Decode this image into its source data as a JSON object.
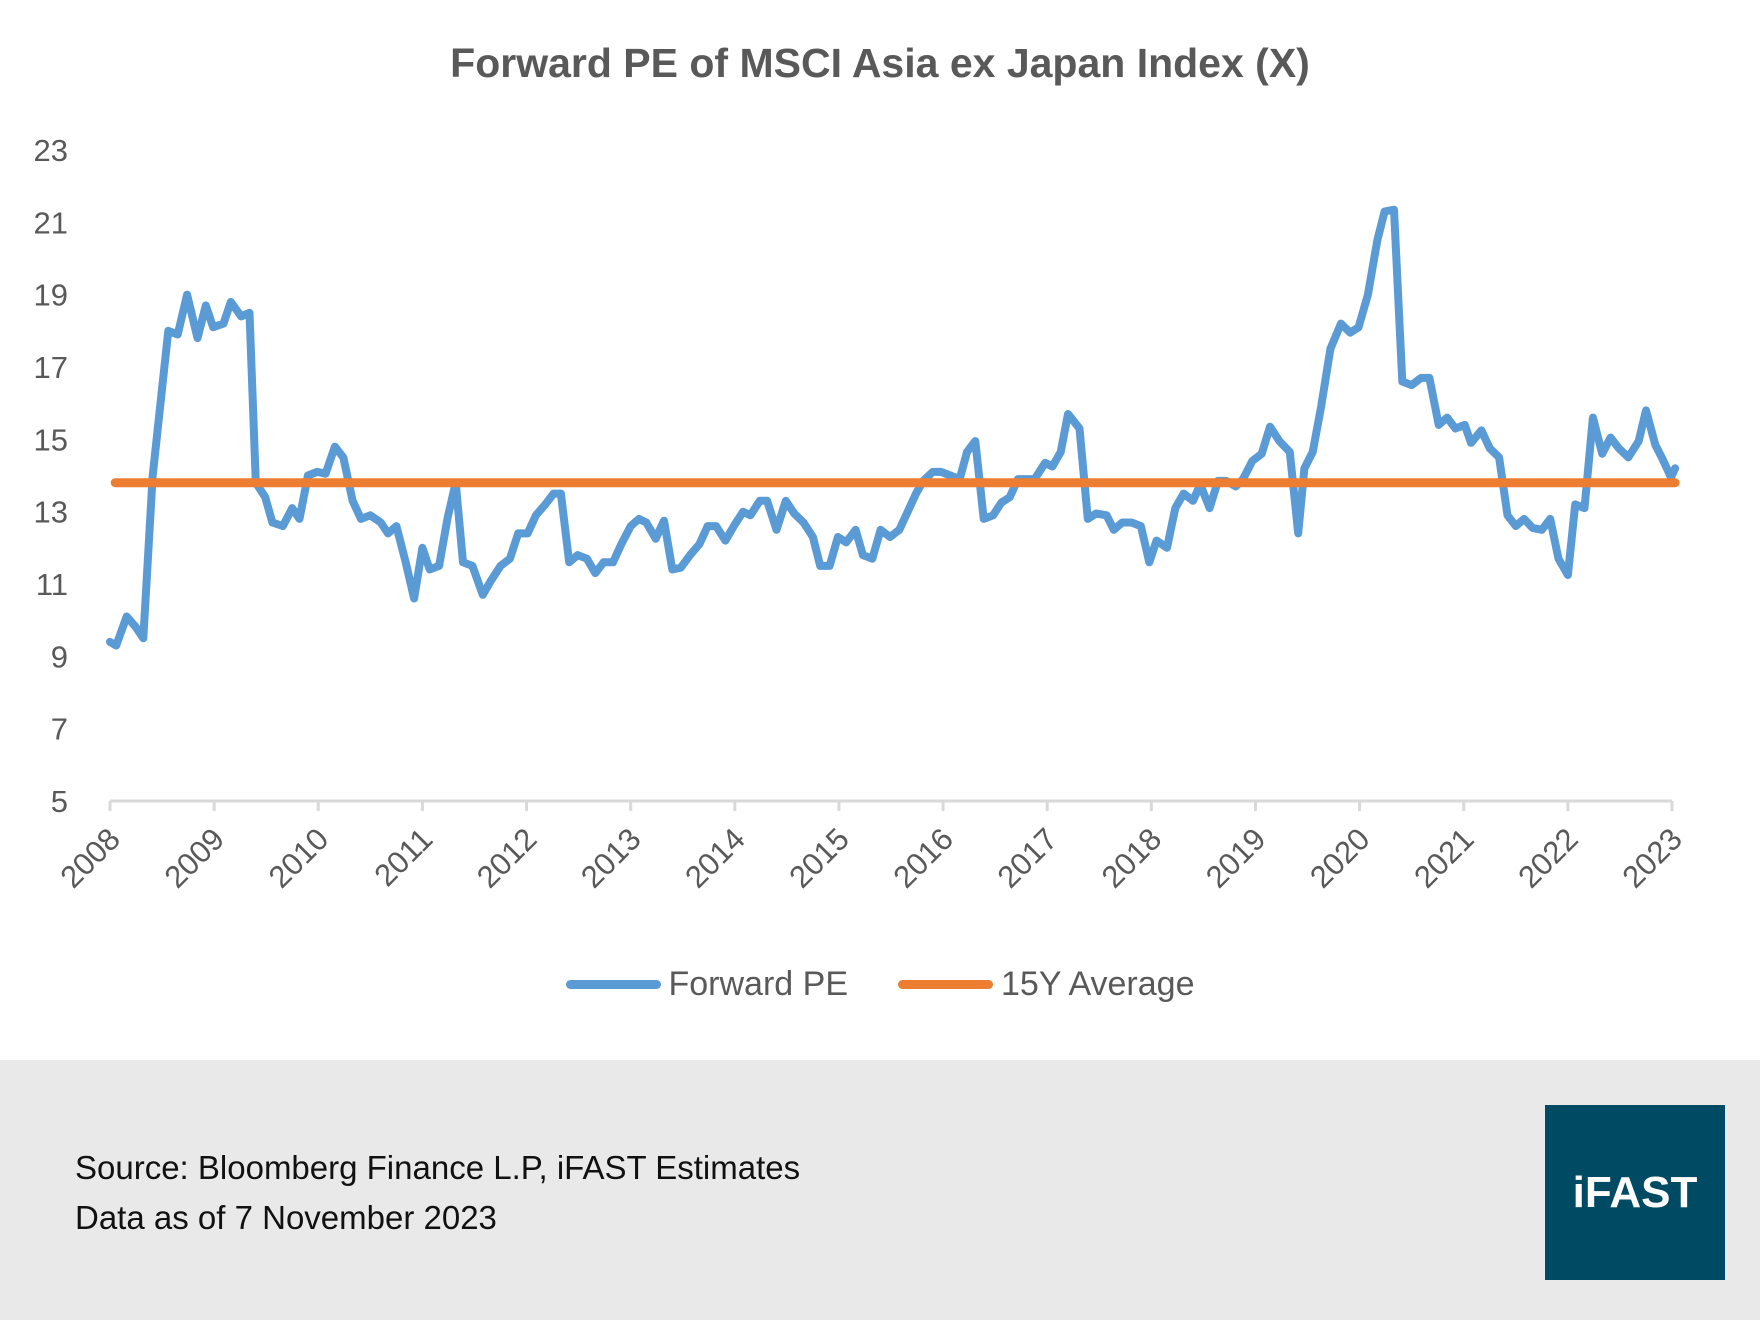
{
  "chart_data": {
    "type": "line",
    "title": "Forward PE of MSCI Asia ex Japan Index (X)",
    "xlabel": "",
    "ylabel": "",
    "xlim": [
      2008,
      2023
    ],
    "ylim": [
      5,
      23
    ],
    "yticks": [
      5,
      7,
      9,
      11,
      13,
      15,
      17,
      19,
      21,
      23
    ],
    "xticks": [
      2008,
      2009,
      2010,
      2011,
      2012,
      2013,
      2014,
      2015,
      2016,
      2017,
      2018,
      2019,
      2020,
      2021,
      2022,
      2023
    ],
    "grid": false,
    "legend_placement": "bottom",
    "series": [
      {
        "name": "Forward PE",
        "color": "#5b9bd5",
        "points": [
          [
            2008.0,
            9.4
          ],
          [
            2008.06,
            9.3
          ],
          [
            2008.16,
            10.1
          ],
          [
            2008.25,
            9.8
          ],
          [
            2008.32,
            9.5
          ],
          [
            2008.41,
            14.0
          ],
          [
            2008.56,
            18.0
          ],
          [
            2008.65,
            17.9
          ],
          [
            2008.74,
            19.0
          ],
          [
            2008.84,
            17.8
          ],
          [
            2008.92,
            18.7
          ],
          [
            2008.99,
            18.1
          ],
          [
            2009.09,
            18.2
          ],
          [
            2009.16,
            18.8
          ],
          [
            2009.26,
            18.4
          ],
          [
            2009.34,
            18.5
          ],
          [
            2009.4,
            13.8
          ],
          [
            2009.49,
            13.4
          ],
          [
            2009.56,
            12.7
          ],
          [
            2009.66,
            12.6
          ],
          [
            2009.75,
            13.1
          ],
          [
            2009.82,
            12.8
          ],
          [
            2009.9,
            14.0
          ],
          [
            2009.99,
            14.1
          ],
          [
            2010.07,
            14.05
          ],
          [
            2010.16,
            14.8
          ],
          [
            2010.24,
            14.5
          ],
          [
            2010.33,
            13.3
          ],
          [
            2010.41,
            12.8
          ],
          [
            2010.5,
            12.9
          ],
          [
            2010.6,
            12.7
          ],
          [
            2010.67,
            12.4
          ],
          [
            2010.75,
            12.6
          ],
          [
            2010.84,
            11.6
          ],
          [
            2010.92,
            10.6
          ],
          [
            2011.0,
            12.0
          ],
          [
            2011.07,
            11.4
          ],
          [
            2011.16,
            11.5
          ],
          [
            2011.24,
            12.8
          ],
          [
            2011.32,
            13.8
          ],
          [
            2011.39,
            11.6
          ],
          [
            2011.48,
            11.5
          ],
          [
            2011.58,
            10.7
          ],
          [
            2011.66,
            11.1
          ],
          [
            2011.75,
            11.5
          ],
          [
            2011.84,
            11.7
          ],
          [
            2011.92,
            12.4
          ],
          [
            2012.01,
            12.4
          ],
          [
            2012.09,
            12.9
          ],
          [
            2012.18,
            13.2
          ],
          [
            2012.26,
            13.5
          ],
          [
            2012.33,
            13.5
          ],
          [
            2012.41,
            11.6
          ],
          [
            2012.49,
            11.8
          ],
          [
            2012.58,
            11.7
          ],
          [
            2012.66,
            11.3
          ],
          [
            2012.74,
            11.6
          ],
          [
            2012.83,
            11.6
          ],
          [
            2012.91,
            12.1
          ],
          [
            2013.0,
            12.6
          ],
          [
            2013.08,
            12.8
          ],
          [
            2013.15,
            12.7
          ],
          [
            2013.24,
            12.25
          ],
          [
            2013.32,
            12.75
          ],
          [
            2013.4,
            11.4
          ],
          [
            2013.48,
            11.45
          ],
          [
            2013.57,
            11.8
          ],
          [
            2013.66,
            12.1
          ],
          [
            2013.74,
            12.6
          ],
          [
            2013.82,
            12.6
          ],
          [
            2013.91,
            12.2
          ],
          [
            2013.99,
            12.6
          ],
          [
            2014.08,
            13.0
          ],
          [
            2014.15,
            12.9
          ],
          [
            2014.24,
            13.3
          ],
          [
            2014.31,
            13.3
          ],
          [
            2014.4,
            12.5
          ],
          [
            2014.49,
            13.3
          ],
          [
            2014.57,
            12.95
          ],
          [
            2014.66,
            12.7
          ],
          [
            2014.75,
            12.3
          ],
          [
            2014.82,
            11.5
          ],
          [
            2014.91,
            11.5
          ],
          [
            2014.99,
            12.3
          ],
          [
            2015.07,
            12.15
          ],
          [
            2015.16,
            12.5
          ],
          [
            2015.23,
            11.8
          ],
          [
            2015.32,
            11.7
          ],
          [
            2015.4,
            12.5
          ],
          [
            2015.49,
            12.3
          ],
          [
            2015.58,
            12.5
          ],
          [
            2015.66,
            13.0
          ],
          [
            2015.74,
            13.5
          ],
          [
            2015.81,
            13.85
          ],
          [
            2015.9,
            14.1
          ],
          [
            2015.98,
            14.1
          ],
          [
            2016.07,
            14.0
          ],
          [
            2016.16,
            13.9
          ],
          [
            2016.23,
            14.65
          ],
          [
            2016.31,
            14.95
          ],
          [
            2016.39,
            12.8
          ],
          [
            2016.48,
            12.9
          ],
          [
            2016.56,
            13.25
          ],
          [
            2016.64,
            13.4
          ],
          [
            2016.72,
            13.9
          ],
          [
            2016.8,
            13.9
          ],
          [
            2016.88,
            13.9
          ],
          [
            2016.98,
            14.35
          ],
          [
            2017.05,
            14.25
          ],
          [
            2017.13,
            14.65
          ],
          [
            2017.2,
            15.7
          ],
          [
            2017.31,
            15.3
          ],
          [
            2017.39,
            12.8
          ],
          [
            2017.47,
            12.95
          ],
          [
            2017.57,
            12.9
          ],
          [
            2017.64,
            12.5
          ],
          [
            2017.72,
            12.7
          ],
          [
            2017.81,
            12.7
          ],
          [
            2017.9,
            12.6
          ],
          [
            2017.98,
            11.6
          ],
          [
            2018.05,
            12.2
          ],
          [
            2018.15,
            12.0
          ],
          [
            2018.23,
            13.1
          ],
          [
            2018.31,
            13.5
          ],
          [
            2018.4,
            13.3
          ],
          [
            2018.47,
            13.75
          ],
          [
            2018.56,
            13.1
          ],
          [
            2018.64,
            13.85
          ],
          [
            2018.72,
            13.85
          ],
          [
            2018.81,
            13.7
          ],
          [
            2018.88,
            13.9
          ],
          [
            2018.97,
            14.4
          ],
          [
            2019.06,
            14.6
          ],
          [
            2019.14,
            15.35
          ],
          [
            2019.23,
            14.95
          ],
          [
            2019.33,
            14.65
          ],
          [
            2019.41,
            12.4
          ],
          [
            2019.47,
            14.2
          ],
          [
            2019.55,
            14.65
          ],
          [
            2019.63,
            15.9
          ],
          [
            2019.72,
            17.5
          ],
          [
            2019.82,
            18.2
          ],
          [
            2019.91,
            17.95
          ],
          [
            2019.99,
            18.1
          ],
          [
            2020.08,
            19.0
          ],
          [
            2020.17,
            20.5
          ],
          [
            2020.24,
            21.3
          ],
          [
            2020.33,
            21.35
          ],
          [
            2020.41,
            16.6
          ],
          [
            2020.5,
            16.5
          ],
          [
            2020.59,
            16.7
          ],
          [
            2020.67,
            16.7
          ],
          [
            2020.76,
            15.4
          ],
          [
            2020.84,
            15.6
          ],
          [
            2020.92,
            15.3
          ],
          [
            2021.01,
            15.4
          ],
          [
            2021.07,
            14.9
          ],
          [
            2021.17,
            15.25
          ],
          [
            2021.25,
            14.75
          ],
          [
            2021.34,
            14.5
          ],
          [
            2021.42,
            12.9
          ],
          [
            2021.5,
            12.6
          ],
          [
            2021.58,
            12.8
          ],
          [
            2021.66,
            12.55
          ],
          [
            2021.75,
            12.5
          ],
          [
            2021.83,
            12.8
          ],
          [
            2021.91,
            11.7
          ],
          [
            2022.0,
            11.25
          ],
          [
            2022.07,
            13.2
          ],
          [
            2022.16,
            13.1
          ],
          [
            2022.24,
            15.6
          ],
          [
            2022.33,
            14.6
          ],
          [
            2022.41,
            15.05
          ],
          [
            2022.49,
            14.75
          ],
          [
            2022.58,
            14.5
          ],
          [
            2022.68,
            14.95
          ],
          [
            2022.75,
            15.8
          ],
          [
            2022.84,
            14.85
          ],
          [
            2022.91,
            14.45
          ],
          [
            2022.99,
            13.95
          ],
          [
            2023.03,
            14.2
          ]
        ]
      },
      {
        "name": "15Y Average",
        "color": "#ed7d31",
        "points": [
          [
            2008.05,
            13.8
          ],
          [
            2023.03,
            13.8
          ]
        ]
      }
    ]
  },
  "footer": {
    "source": "Source: Bloomberg Finance L.P, iFAST Estimates",
    "date": "Data as of 7 November 2023",
    "logo": "iFAST",
    "logo_color": "#004a63",
    "background": "#e9e9e9"
  }
}
